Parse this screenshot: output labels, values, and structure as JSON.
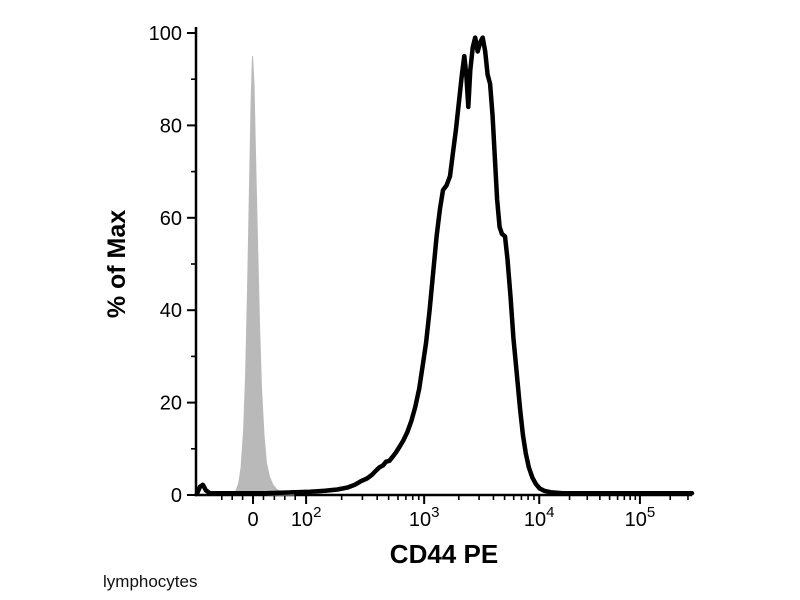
{
  "chart_data": {
    "type": "line",
    "subtype": "flow cytometry fluorescence histogram (overlay of filled control and stained sample)",
    "title": "",
    "xlabel": "CD44 PE",
    "ylabel": "% of Max",
    "annotation": "lymphocytes",
    "grid": "off",
    "legend": "none",
    "x_axis": {
      "scale": "biexponential (linear around 0, logarithmic from 10^2 to ~3x10^5)",
      "note": "u = fraction of distance along the x-axis from left (0) to right (1)",
      "ticks": [
        {
          "label": "0",
          "value": 0,
          "u": 0.115
        },
        {
          "base": "10",
          "exp": "2",
          "value": 100,
          "u": 0.222
        },
        {
          "base": "10",
          "exp": "3",
          "value": 1000,
          "u": 0.46
        },
        {
          "base": "10",
          "exp": "4",
          "value": 10000,
          "u": 0.692
        },
        {
          "base": "10",
          "exp": "5",
          "value": 100000,
          "u": 0.895
        }
      ],
      "linear_minor_u": [
        0.052,
        0.073,
        0.094,
        0.136,
        0.158,
        0.179,
        0.2
      ]
    },
    "y_axis": {
      "range": [
        0,
        100
      ],
      "ticks": [
        0,
        20,
        40,
        60,
        80,
        100
      ],
      "minor_ticks": [
        10,
        30,
        50,
        70,
        90
      ]
    },
    "series": [
      {
        "name": "control (unstained), gray filled",
        "style": "filled",
        "fill": "#b9b9b9",
        "peak_x_approx": 0,
        "peak_y_pct": 95,
        "points": [
          [
            0.072,
            0
          ],
          [
            0.08,
            0.8
          ],
          [
            0.086,
            2.5
          ],
          [
            0.091,
            6
          ],
          [
            0.096,
            14
          ],
          [
            0.1,
            26
          ],
          [
            0.104,
            45
          ],
          [
            0.108,
            68
          ],
          [
            0.111,
            85
          ],
          [
            0.114,
            95
          ],
          [
            0.117,
            89
          ],
          [
            0.12,
            74
          ],
          [
            0.124,
            55
          ],
          [
            0.128,
            37
          ],
          [
            0.132,
            23
          ],
          [
            0.137,
            13
          ],
          [
            0.142,
            7
          ],
          [
            0.148,
            4
          ],
          [
            0.155,
            2.2
          ],
          [
            0.163,
            1.2
          ],
          [
            0.173,
            0.6
          ],
          [
            0.185,
            0.3
          ],
          [
            0.198,
            0
          ]
        ]
      },
      {
        "name": "CD44 PE stained, black line",
        "style": "line",
        "color": "#000000",
        "stroke_width": 4.5,
        "peak_x_approx": 2800,
        "peak_y_pct": 99,
        "shoulder": {
          "x_approx": 5000,
          "y_pct": 56
        },
        "points": [
          [
            0.002,
            0.3
          ],
          [
            0.008,
            1.8
          ],
          [
            0.014,
            2.2
          ],
          [
            0.02,
            1.0
          ],
          [
            0.028,
            0.4
          ],
          [
            0.05,
            0.4
          ],
          [
            0.08,
            0.4
          ],
          [
            0.11,
            0.4
          ],
          [
            0.14,
            0.4
          ],
          [
            0.17,
            0.5
          ],
          [
            0.2,
            0.6
          ],
          [
            0.23,
            0.7
          ],
          [
            0.26,
            0.9
          ],
          [
            0.285,
            1.2
          ],
          [
            0.305,
            1.6
          ],
          [
            0.32,
            2.2
          ],
          [
            0.333,
            3.0
          ],
          [
            0.345,
            3.6
          ],
          [
            0.355,
            4.4
          ],
          [
            0.362,
            5.2
          ],
          [
            0.37,
            6.0
          ],
          [
            0.377,
            6.4
          ],
          [
            0.383,
            7.2
          ],
          [
            0.39,
            7.4
          ],
          [
            0.396,
            8.2
          ],
          [
            0.403,
            9.2
          ],
          [
            0.41,
            10.4
          ],
          [
            0.418,
            11.8
          ],
          [
            0.426,
            13.6
          ],
          [
            0.434,
            16
          ],
          [
            0.442,
            19
          ],
          [
            0.45,
            23
          ],
          [
            0.457,
            28
          ],
          [
            0.464,
            33
          ],
          [
            0.471,
            40
          ],
          [
            0.478,
            48
          ],
          [
            0.485,
            56
          ],
          [
            0.492,
            62
          ],
          [
            0.498,
            66
          ],
          [
            0.505,
            67
          ],
          [
            0.512,
            69
          ],
          [
            0.518,
            74
          ],
          [
            0.524,
            79
          ],
          [
            0.53,
            85
          ],
          [
            0.536,
            91
          ],
          [
            0.541,
            95
          ],
          [
            0.545,
            91
          ],
          [
            0.549,
            84
          ],
          [
            0.553,
            92
          ],
          [
            0.558,
            97
          ],
          [
            0.563,
            99
          ],
          [
            0.568,
            96
          ],
          [
            0.573,
            98
          ],
          [
            0.578,
            99
          ],
          [
            0.583,
            96
          ],
          [
            0.588,
            91
          ],
          [
            0.593,
            89
          ],
          [
            0.598,
            82
          ],
          [
            0.603,
            72
          ],
          [
            0.607,
            64
          ],
          [
            0.612,
            58
          ],
          [
            0.617,
            56.5
          ],
          [
            0.623,
            56
          ],
          [
            0.628,
            51
          ],
          [
            0.634,
            43
          ],
          [
            0.64,
            34
          ],
          [
            0.647,
            26
          ],
          [
            0.653,
            19
          ],
          [
            0.659,
            13
          ],
          [
            0.665,
            9
          ],
          [
            0.671,
            6
          ],
          [
            0.678,
            3.8
          ],
          [
            0.685,
            2.4
          ],
          [
            0.693,
            1.4
          ],
          [
            0.702,
            0.9
          ],
          [
            0.715,
            0.6
          ],
          [
            0.74,
            0.4
          ],
          [
            0.78,
            0.4
          ],
          [
            0.83,
            0.4
          ],
          [
            0.89,
            0.4
          ],
          [
            0.95,
            0.4
          ],
          [
            1.0,
            0.4
          ]
        ]
      }
    ]
  }
}
